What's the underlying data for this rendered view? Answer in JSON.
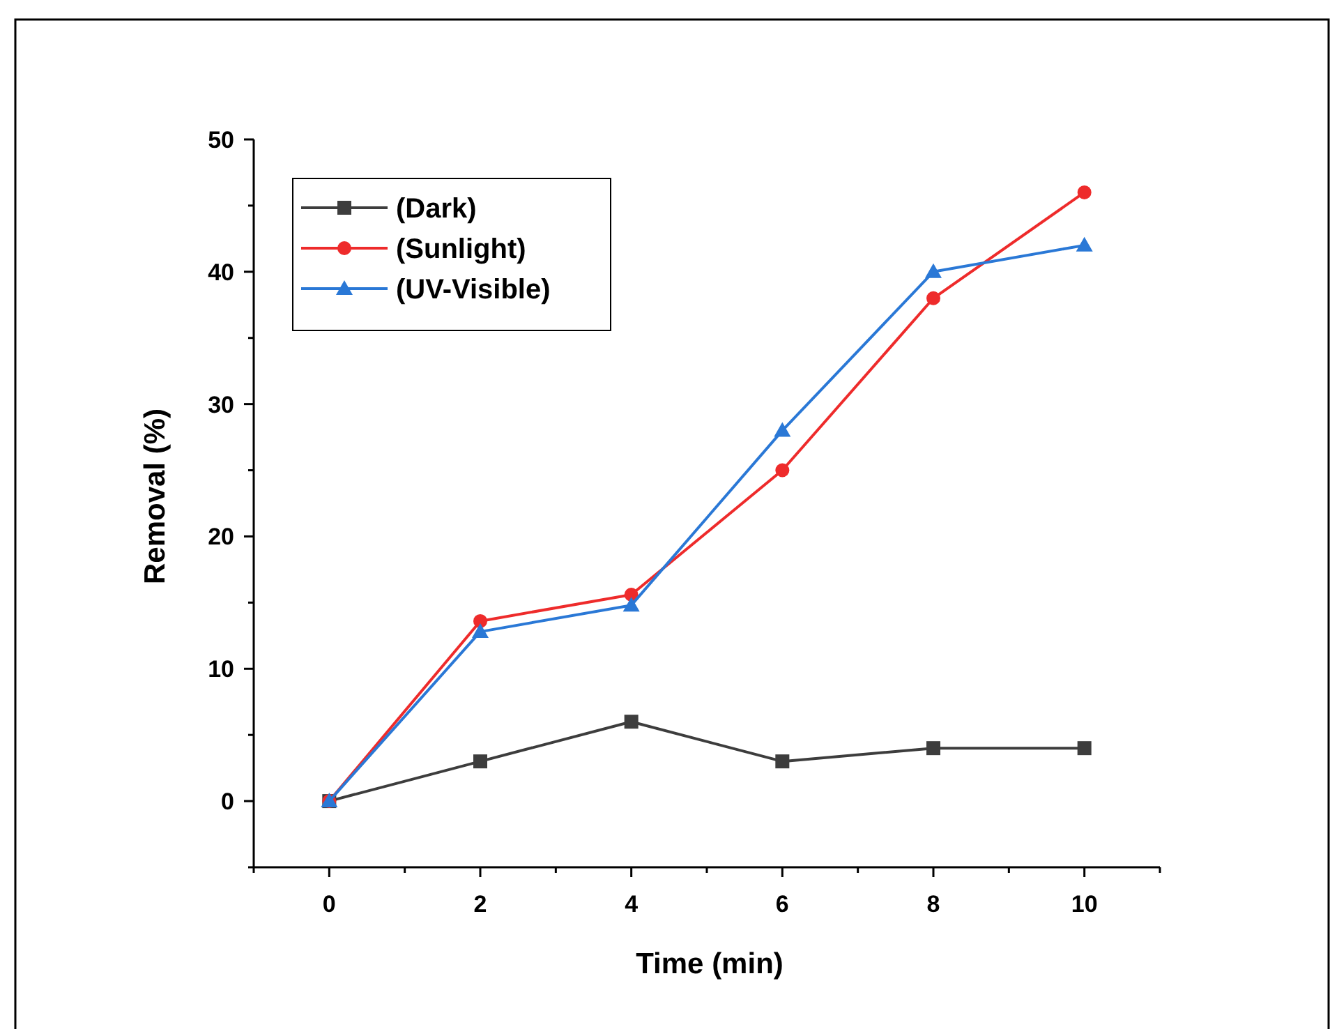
{
  "chart_data": {
    "type": "line",
    "xlabel": "Time (min)",
    "ylabel": "Removal (%)",
    "x": [
      0,
      2,
      4,
      6,
      8,
      10
    ],
    "xlim": [
      -1,
      11
    ],
    "xticks": [
      {
        "value": -1,
        "label": null
      },
      0,
      {
        "value": 1,
        "label": null
      },
      2,
      {
        "value": 3,
        "label": null
      },
      4,
      {
        "value": 5,
        "label": null
      },
      6,
      {
        "value": 7,
        "label": null
      },
      8,
      {
        "value": 9,
        "label": null
      },
      10,
      {
        "value": 11,
        "label": null
      }
    ],
    "ylim": [
      -5,
      50
    ],
    "yticks": [
      {
        "value": -5,
        "label": null
      },
      0,
      {
        "value": 5,
        "label": null
      },
      10,
      {
        "value": 15,
        "label": null
      },
      20,
      {
        "value": 25,
        "label": null
      },
      30,
      {
        "value": 35,
        "label": null
      },
      40,
      {
        "value": 45,
        "label": null
      },
      50
    ],
    "series": [
      {
        "name": "(Dark)",
        "color": "#3d3d3d",
        "marker": "square",
        "values": [
          0,
          3,
          6,
          3,
          4,
          4
        ]
      },
      {
        "name": "(Sunlight)",
        "color": "#ee2b2b",
        "marker": "circle",
        "values": [
          0,
          13.6,
          15.6,
          25,
          38,
          46
        ]
      },
      {
        "name": "(UV-Visible)",
        "color": "#2a78d6",
        "marker": "triangle",
        "values": [
          0,
          12.8,
          14.8,
          28,
          40,
          42
        ]
      }
    ],
    "legend": "top left",
    "grid": false,
    "line_style": "solid"
  }
}
